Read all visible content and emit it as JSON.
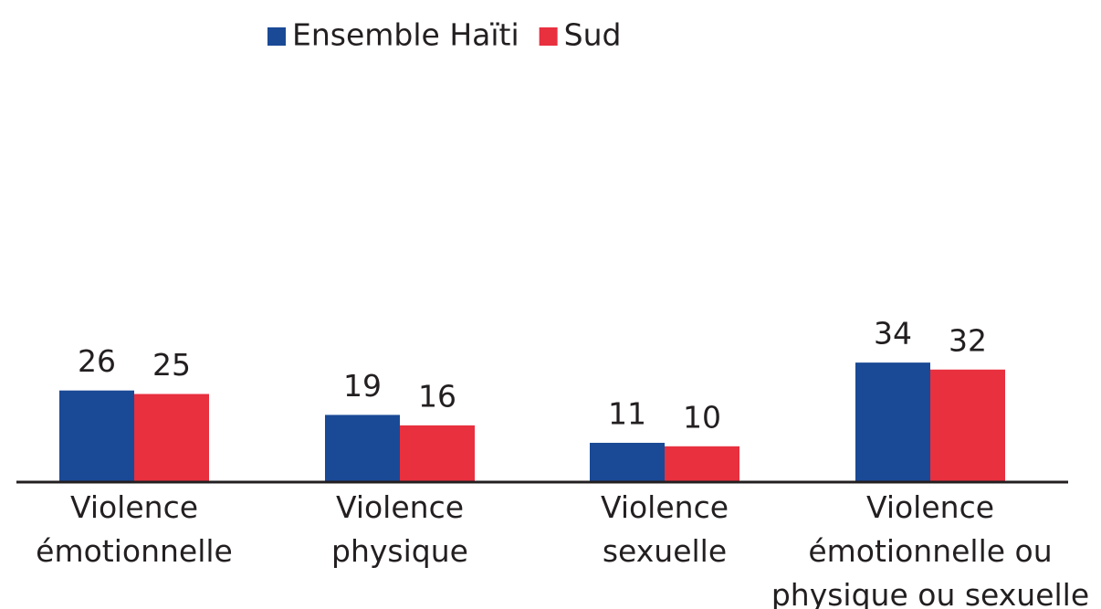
{
  "chart_data": {
    "type": "bar",
    "categories": [
      "Violence\némotionnelle",
      "Violence\nphysique",
      "Violence\nsexuelle",
      "Violence\némotionnelle ou\nphysique ou sexuelle"
    ],
    "series": [
      {
        "name": "Ensemble Haïti",
        "color": "#1a4a96",
        "values": [
          26,
          19,
          11,
          34
        ]
      },
      {
        "name": "Sud",
        "color": "#e8303f",
        "values": [
          25,
          16,
          10,
          32
        ]
      }
    ],
    "legend": "top"
  }
}
